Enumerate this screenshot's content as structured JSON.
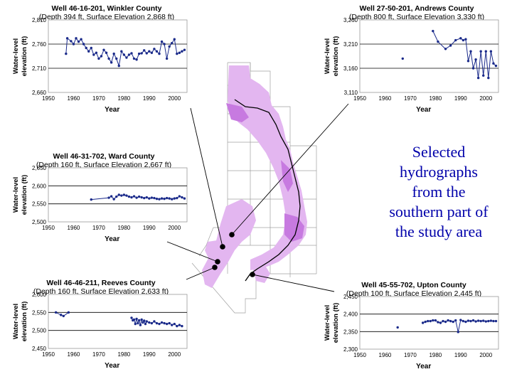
{
  "caption": {
    "lines": [
      "Selected",
      "hydrographs",
      "from the",
      "southern part of",
      "the study area"
    ]
  },
  "map": {
    "name": "southern study area map",
    "fill": "#e3b6f0",
    "dark_fill": "#c77ae0",
    "wells": 5
  },
  "chart_data": [
    {
      "type": "line",
      "id": "winkler",
      "title": "Well 46-16-201, Winkler County",
      "subtitle": "(Depth 394 ft, Surface Elevation 2,868 ft)",
      "xlabel": "Year",
      "ylabel": [
        "Water-level",
        "elevation (ft)"
      ],
      "xlim": [
        1950,
        2005
      ],
      "xticks": [
        1950,
        1960,
        1970,
        1980,
        1990,
        2000
      ],
      "ylim": [
        2660,
        2810
      ],
      "yticks": [
        2660,
        2710,
        2760,
        2810
      ],
      "yticklabels": [
        "2,660",
        "2,710",
        "2,760",
        "2,810"
      ],
      "x": [
        1957,
        1957.5,
        1959,
        1960,
        1961,
        1962,
        1963,
        1964,
        1965,
        1966,
        1967,
        1968,
        1969,
        1970,
        1971,
        1972,
        1973,
        1974,
        1975,
        1976,
        1977,
        1978,
        1979,
        1980,
        1981,
        1982,
        1983,
        1984,
        1985,
        1986,
        1987,
        1988,
        1989,
        1990,
        1991,
        1992,
        1993,
        1994,
        1995,
        1996,
        1997,
        1998,
        1999,
        2000,
        2001,
        2002,
        2003,
        2004
      ],
      "y": [
        2740,
        2772,
        2766,
        2760,
        2772,
        2765,
        2770,
        2760,
        2752,
        2745,
        2752,
        2738,
        2742,
        2730,
        2735,
        2748,
        2742,
        2730,
        2722,
        2740,
        2730,
        2715,
        2745,
        2738,
        2732,
        2738,
        2741,
        2730,
        2728,
        2740,
        2741,
        2747,
        2741,
        2745,
        2742,
        2750,
        2745,
        2740,
        2765,
        2760,
        2730,
        2755,
        2762,
        2770,
        2740,
        2742,
        2745,
        2748
      ]
    },
    {
      "type": "line",
      "id": "andrews",
      "title": "Well 27-50-201, Andrews County",
      "subtitle": "(Depth 800 ft, Surface Elevation 3,330 ft)",
      "xlabel": "Year",
      "ylabel": [
        "Water-level",
        "elevation (ft)"
      ],
      "xlim": [
        1950,
        2005
      ],
      "xticks": [
        1950,
        1960,
        1970,
        1980,
        1990,
        2000
      ],
      "ylim": [
        3110,
        3260
      ],
      "yticks": [
        3110,
        3160,
        3210,
        3260
      ],
      "yticklabels": [
        "3,110",
        "3,160",
        "3,210",
        "3,260"
      ],
      "x": [
        1967,
        1979,
        1981,
        1984,
        1986,
        1988,
        1990,
        1991,
        1992,
        1993,
        1994,
        1995,
        1996,
        1997,
        1998,
        1999,
        2000,
        2001,
        2002,
        2003,
        2004
      ],
      "y": [
        3180,
        3237,
        3215,
        3200,
        3207,
        3218,
        3222,
        3218,
        3220,
        3175,
        3195,
        3160,
        3178,
        3140,
        3195,
        3145,
        3195,
        3140,
        3195,
        3170,
        3165
      ]
    },
    {
      "type": "line",
      "id": "ward",
      "title": "Well 46-31-702, Ward County",
      "subtitle": "(Depth 160 ft, Surface Elevation 2,667 ft)",
      "xlabel": "Year",
      "ylabel": [
        "Water-level",
        "elevation (ft)"
      ],
      "xlim": [
        1950,
        2005
      ],
      "xticks": [
        1950,
        1960,
        1970,
        1980,
        1990,
        2000
      ],
      "ylim": [
        2500,
        2650
      ],
      "yticks": [
        2500,
        2550,
        2600,
        2650
      ],
      "yticklabels": [
        "2,500",
        "2,550",
        "2,600",
        "2,650"
      ],
      "x": [
        1967,
        1974,
        1975,
        1976,
        1977,
        1978,
        1979,
        1980,
        1981,
        1982,
        1983,
        1984,
        1985,
        1986,
        1987,
        1988,
        1989,
        1990,
        1991,
        1992,
        1993,
        1994,
        1995,
        1996,
        1997,
        1998,
        1999,
        2000,
        2001,
        2002,
        2003,
        2004
      ],
      "y": [
        2562,
        2567,
        2571,
        2563,
        2570,
        2575,
        2573,
        2575,
        2573,
        2570,
        2568,
        2571,
        2567,
        2570,
        2568,
        2566,
        2568,
        2565,
        2567,
        2566,
        2564,
        2563,
        2565,
        2564,
        2566,
        2565,
        2563,
        2565,
        2566,
        2571,
        2568,
        2565
      ]
    },
    {
      "type": "line",
      "id": "reeves",
      "title": "Well 46-46-211, Reeves County",
      "subtitle": "(Depth 160 ft, Surface Elevation 2,633 ft)",
      "xlabel": "Year",
      "ylabel": [
        "Water-level",
        "elevation (ft)"
      ],
      "xlim": [
        1950,
        2005
      ],
      "xticks": [
        1950,
        1960,
        1970,
        1980,
        1990,
        2000
      ],
      "ylim": [
        2450,
        2600
      ],
      "yticks": [
        2450,
        2500,
        2550,
        2600
      ],
      "yticklabels": [
        "2,450",
        "2,500",
        "2,550",
        "2,600"
      ],
      "x": [
        1953,
        1955,
        1956,
        1958,
        1983,
        1983.5,
        1984,
        1984.5,
        1985,
        1985.5,
        1986,
        1986.5,
        1987,
        1987.5,
        1988,
        1988.5,
        1989,
        1990,
        1991,
        1992,
        1993,
        1994,
        1995,
        1996,
        1997,
        1998,
        1999,
        2000,
        2001,
        2002,
        2003
      ],
      "y": [
        2550,
        2543,
        2540,
        2550,
        2535,
        2528,
        2530,
        2518,
        2532,
        2520,
        2528,
        2515,
        2530,
        2522,
        2527,
        2518,
        2525,
        2522,
        2520,
        2525,
        2520,
        2518,
        2522,
        2520,
        2518,
        2520,
        2515,
        2518,
        2512,
        2515,
        2512
      ]
    },
    {
      "type": "line",
      "id": "upton",
      "title": "Well 45-55-702, Upton County",
      "subtitle": "(Depth 100 ft, Surface Elevation 2,445 ft)",
      "xlabel": "Year",
      "ylabel": [
        "Water-level",
        "elevation (ft)"
      ],
      "xlim": [
        1950,
        2005
      ],
      "xticks": [
        1950,
        1960,
        1970,
        1980,
        1990,
        2000
      ],
      "ylim": [
        2300,
        2450
      ],
      "yticks": [
        2300,
        2350,
        2400,
        2450
      ],
      "yticklabels": [
        "2,300",
        "2,350",
        "2,400",
        "2,450"
      ],
      "x": [
        1965,
        1975,
        1976,
        1977,
        1978,
        1979,
        1980,
        1981,
        1982,
        1983,
        1984,
        1985,
        1986,
        1987,
        1988,
        1989,
        1990,
        1991,
        1992,
        1993,
        1994,
        1995,
        1996,
        1997,
        1998,
        1999,
        2000,
        2001,
        2002,
        2003,
        2004
      ],
      "y": [
        2362,
        2375,
        2378,
        2380,
        2380,
        2382,
        2382,
        2377,
        2375,
        2380,
        2378,
        2382,
        2380,
        2378,
        2382,
        2349,
        2383,
        2380,
        2378,
        2381,
        2380,
        2382,
        2379,
        2381,
        2380,
        2381,
        2379,
        2380,
        2381,
        2380,
        2380
      ]
    }
  ]
}
